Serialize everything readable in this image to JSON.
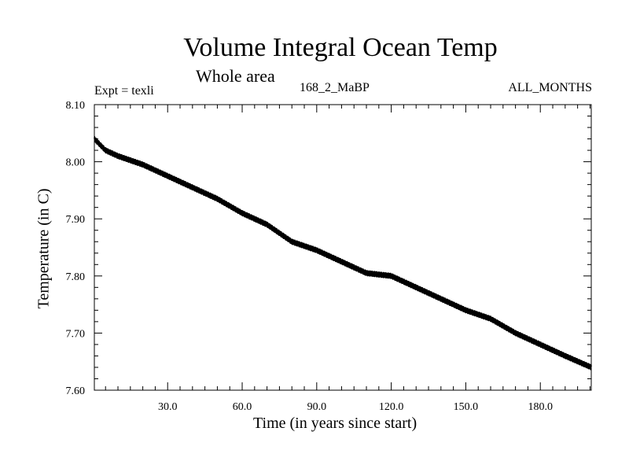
{
  "chart_data": {
    "type": "line",
    "title": "Volume Integral Ocean Temp",
    "subtitle": "Whole area",
    "annotations": {
      "experiment": "Expt = texli",
      "run": "168_2_MaBP",
      "months": "ALL_MONTHS"
    },
    "xlabel": "Time (in years since start)",
    "ylabel": "Temperature (in C)",
    "xlim": [
      0.5,
      200.5
    ],
    "ylim": [
      7.6,
      8.1
    ],
    "xticks": [
      30,
      60,
      90,
      120,
      150,
      180
    ],
    "xtick_labels": [
      "30.0",
      "60.0",
      "90.0",
      "120.0",
      "150.0",
      "180.0"
    ],
    "yticks": [
      7.6,
      7.7,
      7.8,
      7.9,
      8.0,
      8.1
    ],
    "ytick_labels": [
      "7.60",
      "7.70",
      "7.80",
      "7.90",
      "8.00",
      "8.10"
    ],
    "grid": false,
    "series": [
      {
        "name": "Volume integral ocean temperature",
        "color": "#000000",
        "x": [
          0.5,
          5,
          10,
          20,
          30,
          40,
          50,
          60,
          70,
          80,
          90,
          100,
          110,
          120,
          130,
          140,
          150,
          160,
          170,
          180,
          190,
          200.5
        ],
        "y": [
          8.04,
          8.02,
          8.01,
          7.995,
          7.975,
          7.955,
          7.935,
          7.91,
          7.89,
          7.86,
          7.845,
          7.825,
          7.805,
          7.8,
          7.78,
          7.76,
          7.74,
          7.725,
          7.7,
          7.68,
          7.66,
          7.64
        ]
      }
    ]
  }
}
